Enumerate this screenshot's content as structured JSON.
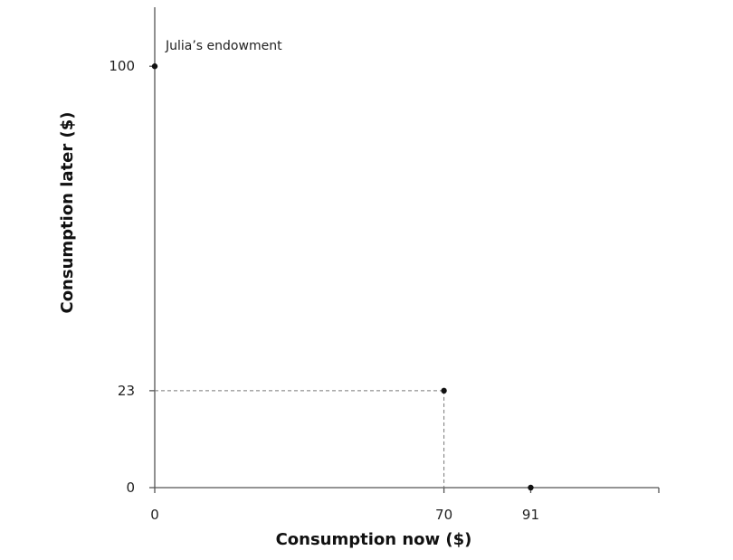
{
  "chart_data": {
    "type": "scatter",
    "xlabel": "Consumption now ($)",
    "ylabel": "Consumption later ($)",
    "xlim": [
      0,
      122
    ],
    "ylim": [
      0,
      114
    ],
    "x_ticks": [
      0,
      70,
      91
    ],
    "y_ticks": [
      0,
      23,
      100
    ],
    "grid": false,
    "points": [
      {
        "x": 0,
        "y": 100,
        "label": "Julia’s endowment"
      },
      {
        "x": 70,
        "y": 23,
        "label": ""
      },
      {
        "x": 91,
        "y": 0,
        "label": ""
      }
    ],
    "guides": [
      {
        "x": 70,
        "y": 23
      }
    ],
    "colors": {
      "axis": "#555555",
      "point": "#111111",
      "guide": "#777777"
    }
  }
}
